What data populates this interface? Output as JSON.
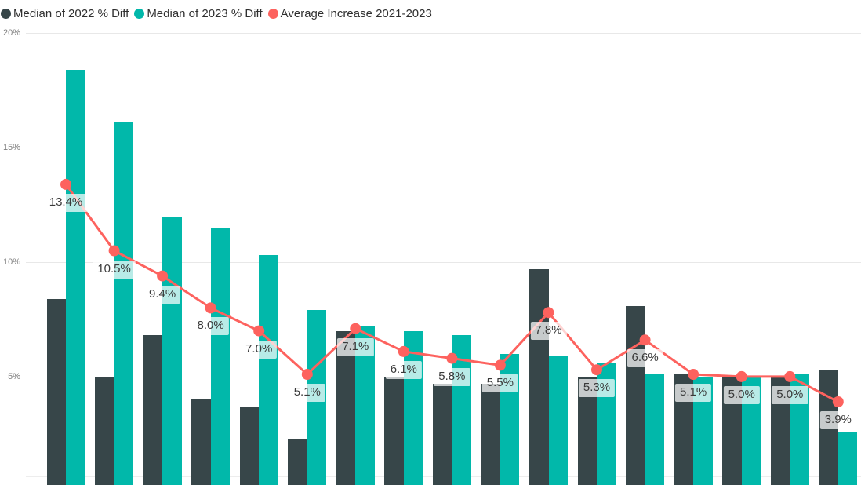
{
  "legend": {
    "items": [
      {
        "label": "Median of 2022 % Diff",
        "color": "#374649"
      },
      {
        "label": "Median of 2023 % Diff",
        "color": "#01B8AA"
      },
      {
        "label": "Average Increase 2021-2023",
        "color": "#FD625E"
      }
    ]
  },
  "y_axis": {
    "tick_labels": [
      "20%",
      "15%",
      "10%",
      "5%"
    ],
    "tick_values": [
      20,
      15,
      10,
      5
    ]
  },
  "chart_data": {
    "type": "combo",
    "title": "",
    "group_count": 17,
    "x_axis_labels_visible": false,
    "categories": [],
    "ylim": [
      0,
      20.5
    ],
    "grid": true,
    "legend_position": "top-left",
    "series": [
      {
        "name": "Median of 2022 % Diff",
        "type": "bar",
        "color": "#374649",
        "values": [
          8.4,
          5.0,
          6.8,
          4.0,
          3.7,
          2.3,
          7.0,
          5.0,
          4.7,
          4.7,
          9.7,
          5.0,
          8.1,
          5.1,
          5.0,
          5.0,
          5.3
        ]
      },
      {
        "name": "Median of 2023 % Diff",
        "type": "bar",
        "color": "#01B8AA",
        "values": [
          18.4,
          16.1,
          12.0,
          11.5,
          10.3,
          7.9,
          7.2,
          7.0,
          6.8,
          6.0,
          5.9,
          5.6,
          5.1,
          5.0,
          5.0,
          5.1,
          2.6
        ]
      },
      {
        "name": "Average Increase 2021-2023",
        "type": "line",
        "color": "#FD625E",
        "point_color": "#FD625E",
        "values": [
          13.4,
          10.5,
          9.4,
          8.0,
          7.0,
          5.1,
          7.1,
          6.1,
          5.8,
          5.5,
          7.8,
          5.3,
          6.6,
          5.1,
          5.0,
          5.0,
          3.9
        ],
        "data_labels": [
          "13.4%",
          "10.5%",
          "9.4%",
          "8.0%",
          "7.0%",
          "5.1%",
          "7.1%",
          "6.1%",
          "5.8%",
          "5.5%",
          "7.8%",
          "5.3%",
          "6.6%",
          "5.1%",
          "5.0%",
          "5.0%",
          "3.9%"
        ],
        "label_bg": "rgba(255,255,255,0.72)",
        "label_text_color": "#3A3A3A"
      }
    ]
  }
}
